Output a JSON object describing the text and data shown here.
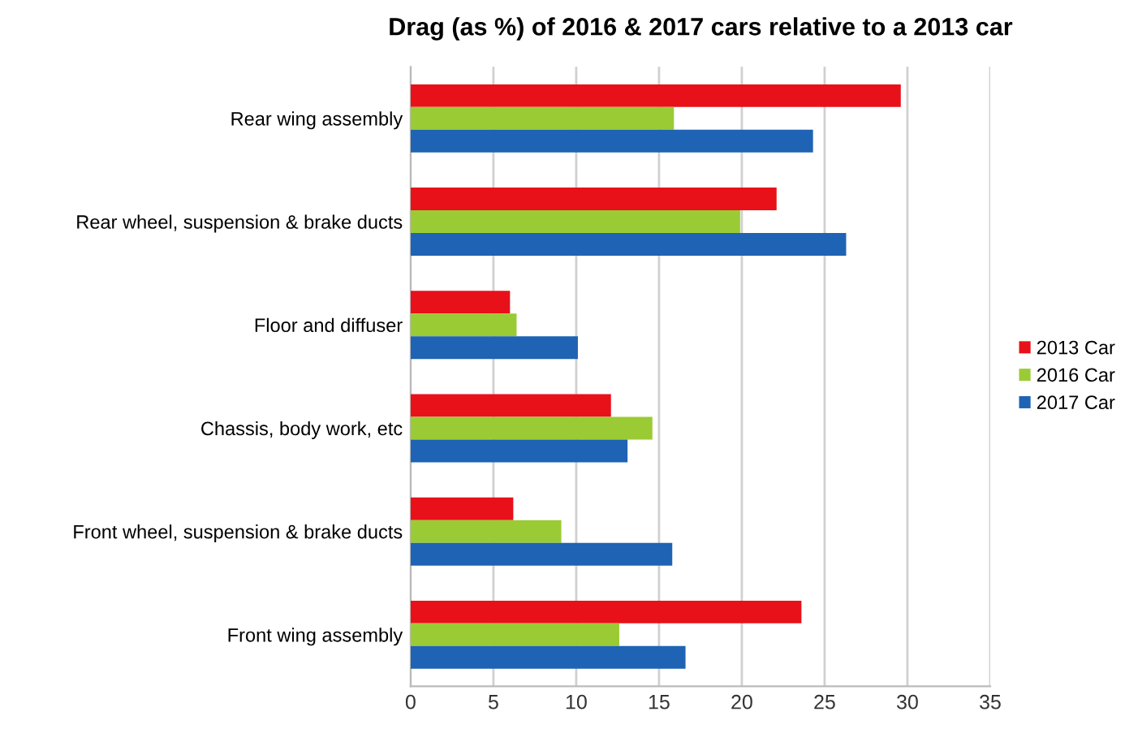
{
  "chart_data": {
    "type": "bar",
    "orientation": "horizontal",
    "title": "Drag (as %) of 2016 & 2017 cars relative to a 2013 car",
    "categories": [
      "Rear wing assembly",
      "Rear wheel, suspension & brake ducts",
      "Floor and diffuser",
      "Chassis, body work, etc",
      "Front wheel, suspension & brake ducts",
      "Front wing assembly"
    ],
    "series": [
      {
        "name": "2013 Car",
        "color": "#e8111a",
        "values": [
          29.6,
          22.1,
          6.0,
          12.1,
          6.2,
          23.6
        ]
      },
      {
        "name": "2016 Car",
        "color": "#9acb34",
        "values": [
          15.9,
          19.9,
          6.4,
          14.6,
          9.1,
          12.6
        ]
      },
      {
        "name": "2017 Car",
        "color": "#1f63b4",
        "values": [
          24.3,
          26.3,
          10.1,
          13.1,
          15.8,
          16.6
        ]
      }
    ],
    "xlim": [
      0,
      35
    ],
    "xticks": [
      0,
      5,
      10,
      15,
      20,
      25,
      30,
      35
    ],
    "grid": "x",
    "legend": "right"
  }
}
